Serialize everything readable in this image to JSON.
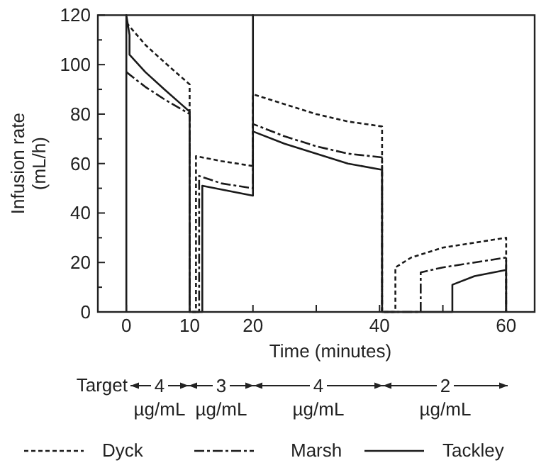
{
  "chart_data": {
    "type": "line",
    "xlabel": "Time (minutes)",
    "ylabel": "Infusion rate\n(mL/h)",
    "xlim": [
      -4.5,
      64.5
    ],
    "ylim": [
      0,
      120
    ],
    "xticks": [
      0,
      10,
      20,
      {
        "value": 30,
        "label": null
      },
      40,
      {
        "value": 50,
        "label": null
      },
      60
    ],
    "yticks": [
      0,
      {
        "value": 10,
        "label": null
      },
      20,
      {
        "value": 30,
        "label": null
      },
      40,
      {
        "value": 50,
        "label": null
      },
      60,
      {
        "value": 70,
        "label": null
      },
      80,
      {
        "value": 90,
        "label": null
      },
      100,
      {
        "value": 110,
        "label": null
      },
      120
    ],
    "grid": false,
    "legend": "bottom",
    "series": [
      {
        "name": "Dyck",
        "color": "#1a1a1a",
        "line_style": "dashed",
        "x": [
          0,
          3,
          6,
          10,
          10,
          11,
          11,
          15,
          20,
          20,
          25,
          30,
          35,
          40.4,
          40.4,
          42.5,
          42.5,
          45,
          50,
          55,
          60,
          60
        ],
        "values": [
          117,
          108,
          101,
          92,
          0,
          0,
          63,
          61,
          59,
          88,
          84,
          80,
          77,
          75,
          0,
          0,
          18,
          22,
          26,
          28,
          30,
          0
        ]
      },
      {
        "name": "Marsh",
        "color": "#1a1a1a",
        "line_style": "dashdot",
        "x": [
          0,
          3,
          6,
          10,
          10,
          11.5,
          11.5,
          15,
          20,
          20,
          25,
          30,
          35,
          40.4,
          40.4,
          46.5,
          46.5,
          50,
          55,
          60,
          60
        ],
        "values": [
          97,
          91,
          86,
          80,
          0,
          0,
          55,
          52,
          50,
          76,
          71,
          67,
          64,
          62.5,
          0,
          0,
          16,
          18,
          20,
          22,
          0
        ]
      },
      {
        "name": "Tackley",
        "color": "#1a1a1a",
        "line_style": "solid",
        "x": [
          0,
          0,
          0.5,
          0.5,
          3,
          6,
          10,
          10,
          12,
          12,
          16,
          20,
          20,
          20,
          25,
          30,
          35,
          40.4,
          40.4,
          51.5,
          51.5,
          55,
          60,
          60
        ],
        "values": [
          0,
          120,
          112,
          104,
          97,
          90,
          81,
          0,
          0,
          51,
          49,
          47,
          120,
          73,
          68,
          64,
          60,
          57.5,
          0,
          0,
          11,
          14.5,
          17,
          0
        ]
      }
    ],
    "annotations": [
      "Target",
      "4\nµg/mL",
      "3\nµg/mL",
      "4\nµg/mL",
      "2\nµg/mL"
    ]
  }
}
